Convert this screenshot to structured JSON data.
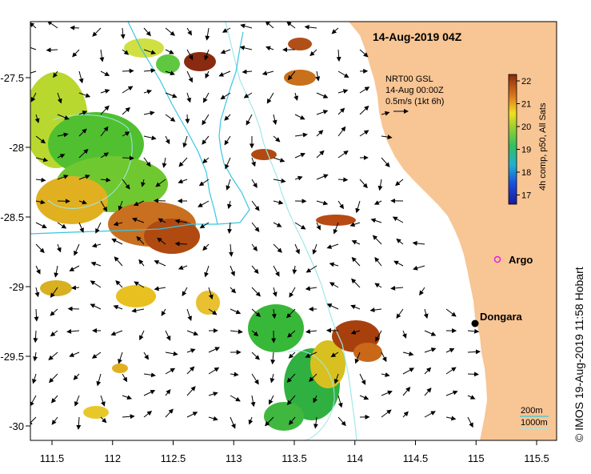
{
  "map": {
    "title": "14-Aug-2019 04Z",
    "credit": "© IMOS 19-Aug-2019 11:58 Hobart",
    "x_ticks": [
      "111.5",
      "112",
      "112.5",
      "113",
      "113.5",
      "114",
      "114.5",
      "115",
      "115.5"
    ],
    "y_ticks": [
      "-27.5",
      "-28",
      "-28.5",
      "-29",
      "-29.5",
      "-30"
    ],
    "current_legend": {
      "line1": "NRT00 GSL",
      "line2": "14-Aug 00:00Z",
      "line3": "0.5m/s (1kt 6h)"
    },
    "colorbar": {
      "label": "4h comp, p50, All Sats",
      "ticks": [
        "22",
        "21",
        "20",
        "19",
        "18",
        "17"
      ]
    },
    "places": {
      "argo": "Argo",
      "dongara": "Dongara"
    },
    "depth_legend": {
      "shallow": "200m",
      "deep": "1000m"
    },
    "colors": {
      "land": "#f8c594",
      "isobath_200": "#38c6e0",
      "isobath_1000": "#9fe8e8",
      "argo": "#e020e0",
      "sst_high": "#a83a0a",
      "sst_mid": "#e0c020",
      "sst_low": "#28b428"
    }
  }
}
